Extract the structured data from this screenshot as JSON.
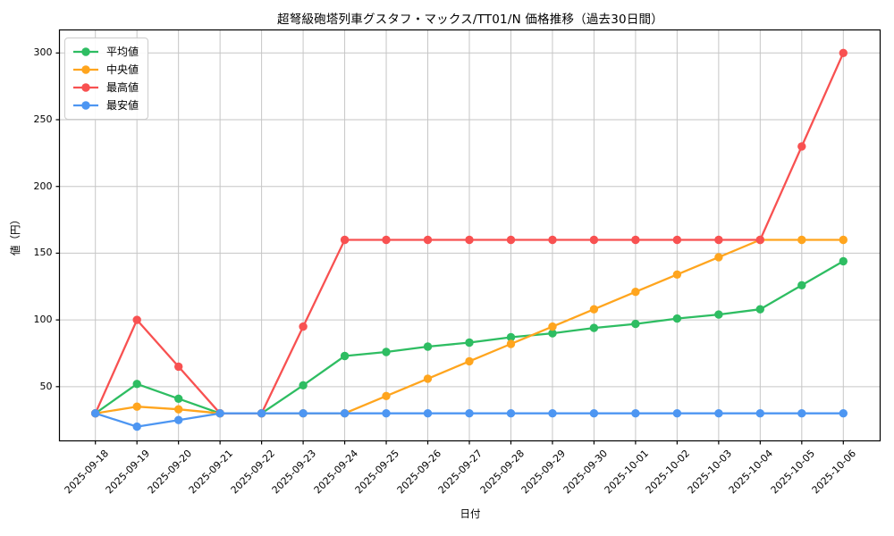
{
  "chart_data": {
    "type": "line",
    "title": "超弩級砲塔列車グスタフ・マックス/TT01/N 価格推移（過去30日間）",
    "xlabel": "日付",
    "ylabel": "値（円）",
    "grid": true,
    "legend_position": "upper-left",
    "yticks": [
      50,
      100,
      150,
      200,
      250,
      300
    ],
    "ylim": [
      9,
      318
    ],
    "categories": [
      "2025-09-18",
      "2025-09-19",
      "2025-09-20",
      "2025-09-21",
      "2025-09-22",
      "2025-09-23",
      "2025-09-24",
      "2025-09-25",
      "2025-09-26",
      "2025-09-27",
      "2025-09-28",
      "2025-09-29",
      "2025-09-30",
      "2025-10-01",
      "2025-10-02",
      "2025-10-03",
      "2025-10-04",
      "2025-10-05",
      "2025-10-06"
    ],
    "series": [
      {
        "key": "average",
        "name": "平均値",
        "color": "#2EBD62",
        "values": [
          30,
          52,
          41,
          30,
          30,
          51,
          73,
          76,
          80,
          83,
          87,
          90,
          94,
          97,
          101,
          104,
          108,
          126,
          144
        ]
      },
      {
        "key": "median",
        "name": "中央値",
        "color": "#FFA51E",
        "values": [
          30,
          35,
          33,
          30,
          30,
          30,
          30,
          43,
          56,
          69,
          82,
          95,
          108,
          121,
          134,
          147,
          160,
          160,
          160
        ]
      },
      {
        "key": "max",
        "name": "最高値",
        "color": "#F85151",
        "values": [
          30,
          100,
          65,
          30,
          30,
          95,
          160,
          160,
          160,
          160,
          160,
          160,
          160,
          160,
          160,
          160,
          160,
          230,
          300
        ]
      },
      {
        "key": "min",
        "name": "最安値",
        "color": "#4D96F2",
        "values": [
          30,
          20,
          25,
          30,
          30,
          30,
          30,
          30,
          30,
          30,
          30,
          30,
          30,
          30,
          30,
          30,
          30,
          30,
          30
        ]
      }
    ],
    "colors": {
      "grid": "#c6c6c6",
      "spine": "#000000",
      "background": "#ffffff",
      "legend_border": "#cccccc"
    }
  }
}
